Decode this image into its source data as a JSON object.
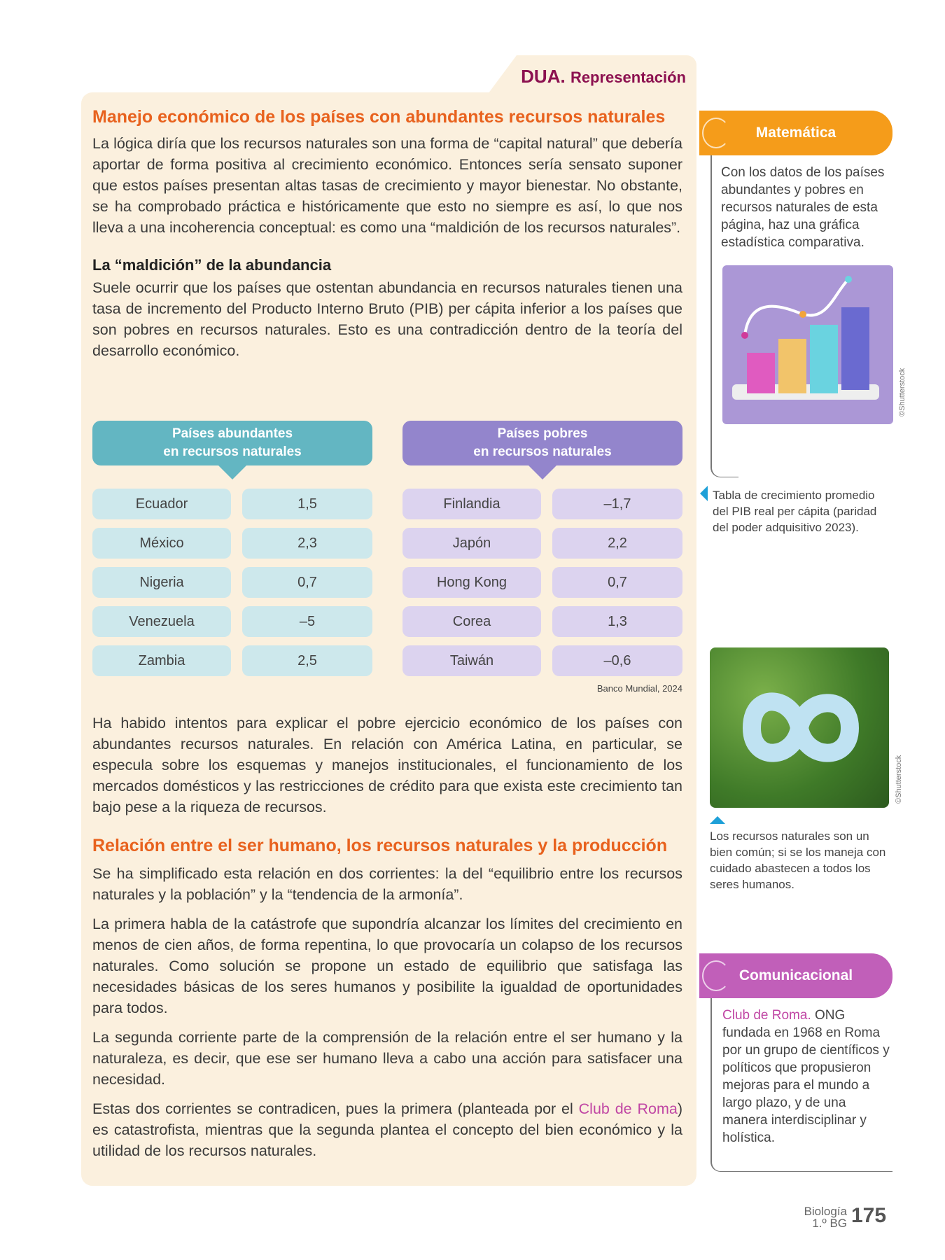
{
  "dua": {
    "bold": "DUA.",
    "label": "Representación"
  },
  "section1": {
    "title": "Manejo económico de los países con abundantes recursos naturales",
    "p1": "La lógica diría que los recursos naturales son una forma de “capital natural” que debería aportar de forma positiva al crecimiento económico. Entonces sería sensato suponer que estos países presentan altas tasas de crecimiento y mayor bienestar. No obstante, se ha comprobado práctica e históricamente que esto no siempre es así, lo que nos lleva a una incoherencia conceptual: es como una “maldición de los recursos naturales”.",
    "subtitle": "La “maldición” de la abundancia",
    "p2": "Suele ocurrir que los países que ostentan abundancia en recursos naturales tienen una tasa de incremento del Producto Interno Bruto (PIB) per cápita inferior a los países que son pobres en recursos naturales. Esto es una contradicción dentro de la teoría del desarrollo económico."
  },
  "table": {
    "abundant": {
      "header1": "Países abundantes",
      "header2": "en recursos naturales",
      "color": "#63b6c2",
      "rows": [
        [
          "Ecuador",
          "1,5"
        ],
        [
          "México",
          "2,3"
        ],
        [
          "Nigeria",
          "0,7"
        ],
        [
          "Venezuela",
          "–5"
        ],
        [
          "Zambia",
          "2,5"
        ]
      ]
    },
    "poor": {
      "header1": "Países pobres",
      "header2": "en recursos naturales",
      "color": "#9385cc",
      "rows": [
        [
          "Finlandia",
          "–1,7"
        ],
        [
          "Japón",
          "2,2"
        ],
        [
          "Hong Kong",
          "0,7"
        ],
        [
          "Corea",
          "1,3"
        ],
        [
          "Taiwán",
          "–0,6"
        ]
      ]
    },
    "source": "Banco Mundial, 2024"
  },
  "p3": "Ha habido intentos para explicar el pobre ejercicio económico de los países con abundantes recursos naturales. En relación con América Latina, en particular, se especula sobre los esquemas y manejos institucionales, el funcionamiento de los mercados domésticos y las restricciones de crédito para que exista este crecimiento tan bajo pese a la riqueza de recursos.",
  "section2": {
    "title": "Relación entre el ser humano, los recursos naturales y la producción",
    "p1": "Se ha simplificado esta relación en dos corrientes: la del “equilibrio entre los recursos naturales y la población” y la “tendencia de la armonía”.",
    "p2": "La primera habla de la catástrofe que supondría alcanzar los límites del crecimiento en menos de cien años, de forma repentina, lo que provocaría un colapso de los recursos naturales. Como solución se propone un estado de equilibrio que satisfaga las necesidades básicas de los seres humanos y posibilite la igualdad de oportunidades para todos.",
    "p3": "La segunda corriente parte de la comprensión de la relación entre el ser humano y la naturaleza, es decir, que ese ser humano lleva a cabo una acción para satisfacer una necesidad.",
    "p4a": "Estas dos corrientes se contradicen, pues la primera (planteada por el ",
    "p4link": "Club de Roma",
    "p4b": ") es catastrofista, mientras que la segunda plantea el concepto del bien económico y la utilidad de los recursos naturales."
  },
  "sidebar": {
    "math": {
      "title": "Matemática",
      "color": "#f59c1a",
      "text": "Con los datos de los países abundantes y pobres en recursos naturales de esta página, haz una gráfica estadística comparativa."
    },
    "credit": "©Shutterstock",
    "table_caption": "Tabla de crecimiento promedio del PIB real per cápita (paridad del poder adquisitivo 2023).",
    "image_caption": "Los recursos naturales son un bien común; si se los maneja con cuidado abastecen a todos los seres humanos.",
    "comm": {
      "title": "Comunicacional",
      "color": "#c15fb9",
      "term": "Club de Roma.",
      "text": " ONG fundada en 1968 en Roma por un grupo de científicos y políticos que propusieron mejoras para el mundo a largo plazo, y de una manera interdisciplinar y holística."
    }
  },
  "footer": {
    "subject": "Biología",
    "grade": "1.º BG",
    "page": "175"
  }
}
